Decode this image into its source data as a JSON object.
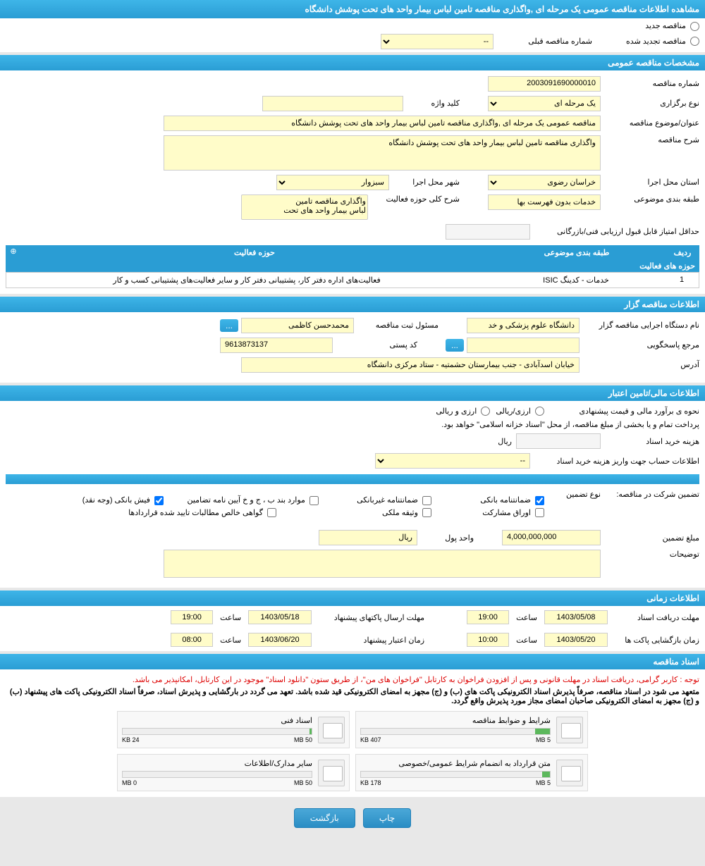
{
  "header": {
    "title": "مشاهده اطلاعات مناقصه عمومی یک مرحله ای ,واگذاری مناقصه تامین لباس بیمار واحد های تحت پوشش دانشگاه"
  },
  "radio": {
    "new_tender": "مناقصه جدید",
    "renewed_tender": "مناقصه تجدید شده",
    "prev_tender_label": "شماره مناقصه قبلی",
    "prev_tender_value": "--"
  },
  "general": {
    "section_title": "مشخصات مناقصه عمومی",
    "tender_number_label": "شماره مناقصه",
    "tender_number": "2003091690000010",
    "holding_type_label": "نوع برگزاری",
    "holding_type": "یک مرحله ای",
    "keyword_label": "کلید واژه",
    "keyword": "",
    "subject_label": "عنوان/موضوع مناقصه",
    "subject": "مناقصه عمومی یک مرحله ای ,واگذاری مناقصه تامین لباس بیمار واحد های تحت پوشش دانشگاه",
    "desc_label": "شرح مناقصه",
    "desc": "واگذاری مناقصه تامین لباس بیمار واحد های تحت پوشش دانشگاه",
    "province_label": "استان محل اجرا",
    "province": "خراسان رضوی",
    "city_label": "شهر محل اجرا",
    "city": "سبزوار",
    "category_label": "طبقه بندی موضوعی",
    "category": "خدمات بدون فهرست بها",
    "activity_summary_label": "شرح کلی حوزه فعالیت",
    "activity_summary_line1": "واگذاری مناقصه تامین",
    "activity_summary_line2": "لباس بیمار واحد های تحت",
    "min_score_label": "حداقل امتیاز قابل قبول ارزیابی فنی/بازرگانی",
    "min_score": ""
  },
  "activity_table": {
    "title": "حوزه های فعالیت",
    "col_row": "ردیف",
    "col_category": "طبقه بندی موضوعی",
    "col_activity": "حوزه فعالیت",
    "rows": [
      {
        "num": "1",
        "category": "خدمات - کدینگ ISIC",
        "activity": "فعالیت‌های اداره دفتر کار، پشتیبانی دفتر کار و سایر فعالیت‌های پشتیبانی کسب و کار"
      }
    ]
  },
  "organizer": {
    "section_title": "اطلاعات مناقصه گزار",
    "org_label": "نام دستگاه اجرایی مناقصه گزار",
    "org_name": "دانشگاه علوم پزشکی و خد",
    "registrar_label": "مسئول ثبت مناقصه",
    "registrar_name": "محمدحسن کاظمی",
    "responder_label": "مرجع پاسخگویی",
    "responder": "",
    "postal_label": "کد پستی",
    "postal": "9613873137",
    "address_label": "آدرس",
    "address": "خیابان اسدآبادی - جنب بیمارستان حشمتیه - ستاد مرکزی دانشگاه"
  },
  "financial": {
    "section_title": "اطلاعات مالی/تامین اعتبار",
    "method_label": "نحوه ی برآورد مالی و قیمت پیشنهادی",
    "method_opt1": "ارزی/ریالی",
    "method_opt2": "ارزی و ریالی",
    "treasury_note": "پرداخت تمام و یا بخشی از مبلغ مناقصه، از محل \"اسناد خزانه اسلامی\" خواهد بود.",
    "doc_cost_label": "هزینه خرید اسناد",
    "doc_cost": "",
    "doc_cost_unit": "ریال",
    "account_label": "اطلاعات حساب جهت واریز هزینه خرید اسناد",
    "account_value": "--"
  },
  "guarantee": {
    "participation_label": "تضمین شرکت در مناقصه:",
    "type_label": "نوع تضمین",
    "opt_bank_guarantee": "ضمانتنامه بانکی",
    "opt_nonbank_guarantee": "ضمانتنامه غیربانکی",
    "opt_bonds": "موارد بند ب ، ج و خ آیین نامه تضامین",
    "opt_cash": "فیش بانکی (وجه نقد)",
    "opt_participation": "اوراق مشارکت",
    "opt_property": "وثیقه ملکی",
    "opt_receivables": "گواهی خالص مطالبات تایید شده قراردادها",
    "amount_label": "مبلغ تضمین",
    "amount": "4,000,000,000",
    "currency_label": "واحد پول",
    "currency": "ریال",
    "notes_label": "توضیحات",
    "notes": ""
  },
  "timing": {
    "section_title": "اطلاعات زمانی",
    "receive_deadline_label": "مهلت دریافت اسناد",
    "receive_deadline_date": "1403/05/08",
    "receive_deadline_time": "19:00",
    "send_deadline_label": "مهلت ارسال پاکتهای پیشنهاد",
    "send_deadline_date": "1403/05/18",
    "send_deadline_time": "19:00",
    "opening_label": "زمان بازگشایی پاکت ها",
    "opening_date": "1403/05/20",
    "opening_time": "10:00",
    "validity_label": "زمان اعتبار پیشنهاد",
    "validity_date": "1403/06/20",
    "validity_time": "08:00",
    "time_word": "ساعت"
  },
  "documents": {
    "section_title": "اسناد مناقصه",
    "notice_red": "توجه : کاربر گرامی، دریافت اسناد در مهلت قانونی و پس از افزودن فراخوان به کارتابل \"فراخوان های من\"، از طریق ستون \"دانلود اسناد\" موجود در این کارتابل، امکانپذیر می باشد.",
    "notice_black": "متعهد می شود در اسناد مناقصه، صرفاً پذیرش اسناد الکترونیکی پاکت های (ب) و (ج) مجهز به امضای الکترونیکی قید شده باشد. تعهد می گردد در بارگشایی و پذیرش اسناد، صرفاً اسناد الکترونیکی پاکت های پیشنهاد (ب) و (ج) مجهز به امضای الکترونیکی صاحبان امضای مجاز مورد پذیرش واقع گردد.",
    "docs": [
      {
        "title": "شرایط و ضوابط مناقصه",
        "used": "407 KB",
        "total": "5 MB",
        "fill_pct": 8
      },
      {
        "title": "اسناد فنی",
        "used": "24 KB",
        "total": "50 MB",
        "fill_pct": 1
      },
      {
        "title": "متن قرارداد به انضمام شرایط عمومی/خصوصی",
        "used": "178 KB",
        "total": "5 MB",
        "fill_pct": 4
      },
      {
        "title": "سایر مدارک/اطلاعات",
        "used": "0 MB",
        "total": "50 MB",
        "fill_pct": 0
      }
    ]
  },
  "buttons": {
    "print": "چاپ",
    "back": "بازگشت"
  }
}
